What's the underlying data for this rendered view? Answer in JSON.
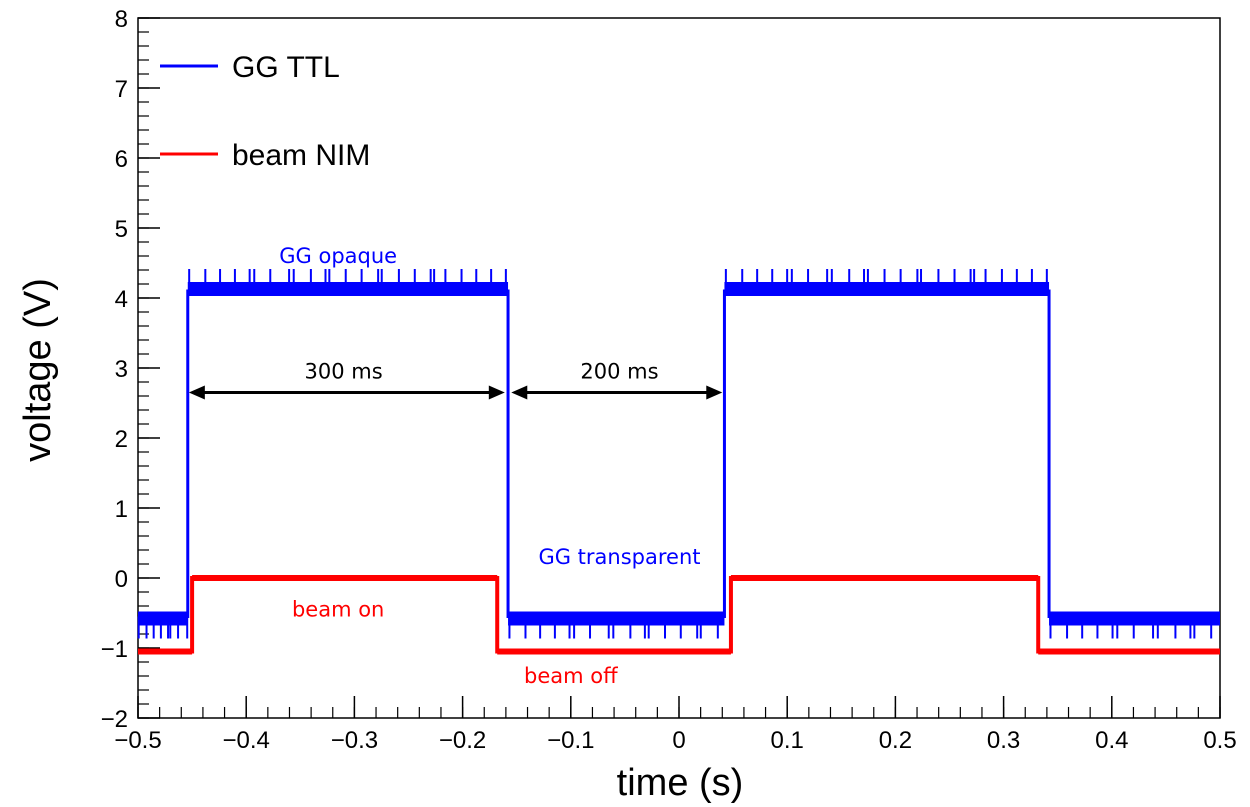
{
  "chart_data": {
    "type": "line",
    "title": "",
    "xlabel": "time (s)",
    "ylabel": "voltage (V)",
    "xlim": [
      -0.5,
      0.5
    ],
    "ylim": [
      -2,
      8
    ],
    "x_ticks": [
      -0.5,
      -0.4,
      -0.3,
      -0.2,
      -0.1,
      0,
      0.1,
      0.2,
      0.3,
      0.4,
      0.5
    ],
    "x_tick_labels": [
      "−0.5",
      "−0.4",
      "−0.3",
      "−0.2",
      "−0.1",
      "0",
      "0.1",
      "0.2",
      "0.3",
      "0.4",
      "0.5"
    ],
    "y_ticks": [
      -2,
      -1,
      0,
      1,
      2,
      3,
      4,
      5,
      6,
      7,
      8
    ],
    "y_tick_labels": [
      "−2",
      "−1",
      "0",
      "1",
      "2",
      "3",
      "4",
      "5",
      "6",
      "7",
      "8"
    ],
    "grid": false,
    "legend_position": "top-left",
    "series": [
      {
        "name": "GG TTL",
        "color": "#0000ff",
        "x": [
          -0.5,
          -0.454,
          -0.454,
          -0.158,
          -0.158,
          0.042,
          0.042,
          0.342,
          0.342,
          0.5
        ],
        "y": [
          -0.55,
          -0.55,
          4.1,
          4.1,
          -0.55,
          -0.55,
          4.1,
          4.1,
          -0.55,
          -0.55
        ]
      },
      {
        "name": "beam NIM",
        "color": "#ff0000",
        "x": [
          -0.5,
          -0.45,
          -0.45,
          -0.168,
          -0.168,
          0.048,
          0.048,
          0.332,
          0.332,
          0.5
        ],
        "y": [
          -1.05,
          -1.05,
          0.0,
          0.0,
          -1.05,
          -1.05,
          0.0,
          0.0,
          -1.05,
          -1.05
        ]
      }
    ],
    "annotations": [
      {
        "text": "GG opaque",
        "x": -0.315,
        "y": 4.5,
        "color": "#0000ff"
      },
      {
        "text": "GG transparent",
        "x": -0.055,
        "y": 0.2,
        "color": "#0000ff"
      },
      {
        "text": "beam on",
        "x": -0.315,
        "y": -0.55,
        "color": "#ff0000"
      },
      {
        "text": "beam off",
        "x": -0.1,
        "y": -1.5,
        "color": "#ff0000"
      },
      {
        "text": "300 ms",
        "x": -0.31,
        "y": 2.85,
        "color": "#000000",
        "arrow_from": -0.453,
        "arrow_to": -0.161,
        "arrow_y": 2.65
      },
      {
        "text": "200 ms",
        "x": -0.055,
        "y": 2.85,
        "color": "#000000",
        "arrow_from": -0.155,
        "arrow_to": 0.04,
        "arrow_y": 2.65
      }
    ]
  }
}
